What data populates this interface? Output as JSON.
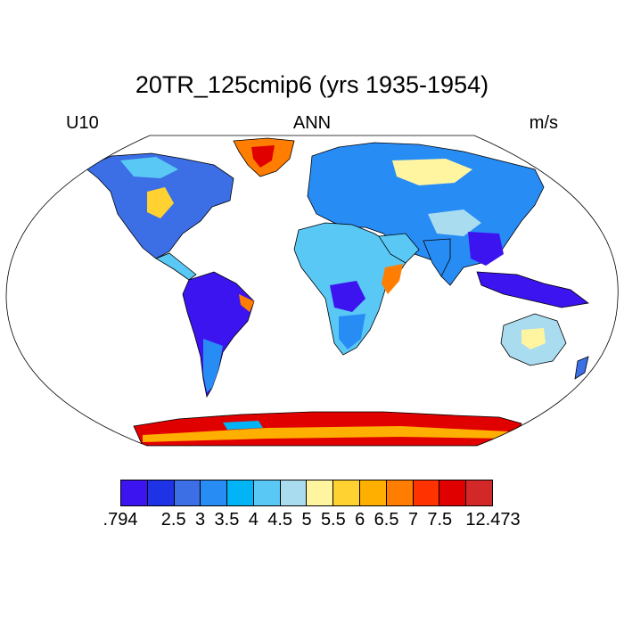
{
  "title": "20TR_125cmip6 (yrs 1935-1954)",
  "subtitle_left": "U10",
  "subtitle_center": "ANN",
  "subtitle_right": "m/s",
  "colorbar": {
    "colors": [
      "#3c14f0",
      "#1e32e6",
      "#3c6ee6",
      "#288cf5",
      "#00b4f5",
      "#5ac8f5",
      "#aadcf0",
      "#fff5a0",
      "#ffd232",
      "#ffaf00",
      "#ff7d00",
      "#ff3200",
      "#e10000",
      "#d22828"
    ],
    "tick_labels": [
      ".794",
      "2.5",
      "3",
      "3.5",
      "4",
      "4.5",
      "5",
      "5.5",
      "6",
      "6.5",
      "7",
      "7.5",
      "12.473"
    ],
    "tick_boundary_index": [
      0,
      2,
      3,
      4,
      5,
      6,
      7,
      8,
      9,
      10,
      11,
      12,
      14
    ]
  },
  "map_data": {
    "projection": "robinson",
    "variable": "U10",
    "season": "ANN",
    "units": "m/s",
    "levels": [
      2.5,
      3,
      3.5,
      4,
      4.5,
      5,
      5.5,
      6,
      6.5,
      7,
      7.5
    ],
    "min": 0.794,
    "max": 12.473,
    "regions": [
      {
        "name": "Greenland",
        "color": "#ff7d00"
      },
      {
        "name": "Antarctica",
        "color": "#e10000"
      },
      {
        "name": "Amazon",
        "color": "#3c14f0"
      },
      {
        "name": "Congo Basin",
        "color": "#3c14f0"
      },
      {
        "name": "Maritime Continent",
        "color": "#3c14f0"
      },
      {
        "name": "Horn of Africa",
        "color": "#ff7d00"
      },
      {
        "name": "Australia",
        "color": "#aadcf0"
      },
      {
        "name": "Sahara",
        "color": "#5ac8f5"
      },
      {
        "name": "Eurasia",
        "color": "#288cf5"
      },
      {
        "name": "North America",
        "color": "#3c6ee6"
      }
    ]
  }
}
